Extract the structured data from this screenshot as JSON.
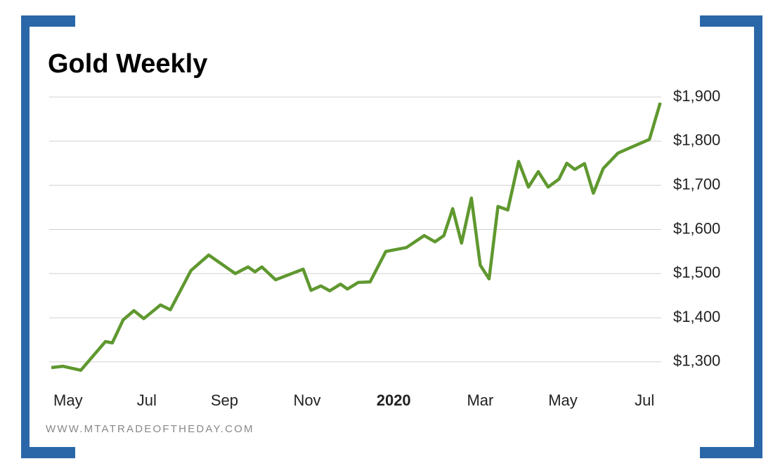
{
  "chart_data": {
    "type": "line",
    "title": "Gold Weekly",
    "source": "WWW.MTATRADEOFTHEDAY.COM",
    "series": [
      {
        "name": "Gold",
        "color": "#5f982f",
        "x": [
          0,
          1.2,
          3,
          5.5,
          6.2,
          7.3,
          8.4,
          9.4,
          11.1,
          12.1,
          14.2,
          16,
          18.7,
          20,
          20.7,
          21.4,
          22.8,
          25.6,
          26.4,
          27.4,
          28.3,
          29.4,
          30.1,
          31.2,
          32.4,
          34,
          36.1,
          37.9,
          39,
          39.9,
          40.8,
          41.7,
          42.7,
          43.6,
          44.5,
          45.4,
          46.4,
          47.5,
          48.5,
          49.5,
          50.5,
          51.6,
          52.4,
          53.2,
          54.2,
          55.1,
          56.1,
          57.6,
          60.8,
          61.9
        ],
        "values": [
          1287,
          1290,
          1281,
          1346,
          1343,
          1395,
          1416,
          1398,
          1429,
          1418,
          1507,
          1542,
          1500,
          1515,
          1504,
          1515,
          1486,
          1510,
          1462,
          1472,
          1461,
          1476,
          1465,
          1480,
          1481,
          1550,
          1559,
          1586,
          1572,
          1586,
          1647,
          1569,
          1671,
          1519,
          1488,
          1652,
          1644,
          1754,
          1696,
          1731,
          1696,
          1714,
          1750,
          1736,
          1749,
          1682,
          1738,
          1773,
          1804,
          1887
        ]
      }
    ],
    "xlim": [
      0,
      62
    ],
    "xticks": [
      {
        "value": 1.7,
        "label": "May"
      },
      {
        "value": 9.7,
        "label": "Jul"
      },
      {
        "value": 17.6,
        "label": "Sep"
      },
      {
        "value": 26,
        "label": "Nov"
      },
      {
        "value": 34.8,
        "label": "2020"
      },
      {
        "value": 43.6,
        "label": "Mar"
      },
      {
        "value": 52,
        "label": "May"
      },
      {
        "value": 60.3,
        "label": "Jul"
      }
    ],
    "ylim": [
      1260,
      1900
    ],
    "yticks": [
      {
        "value": 1300,
        "label": "$1,300"
      },
      {
        "value": 1400,
        "label": "$1,400"
      },
      {
        "value": 1500,
        "label": "$1,500"
      },
      {
        "value": 1600,
        "label": "$1,600"
      },
      {
        "value": 1700,
        "label": "$1,700"
      },
      {
        "value": 1800,
        "label": "$1,800"
      },
      {
        "value": 1900,
        "label": "$1,900"
      }
    ],
    "grid": true
  }
}
